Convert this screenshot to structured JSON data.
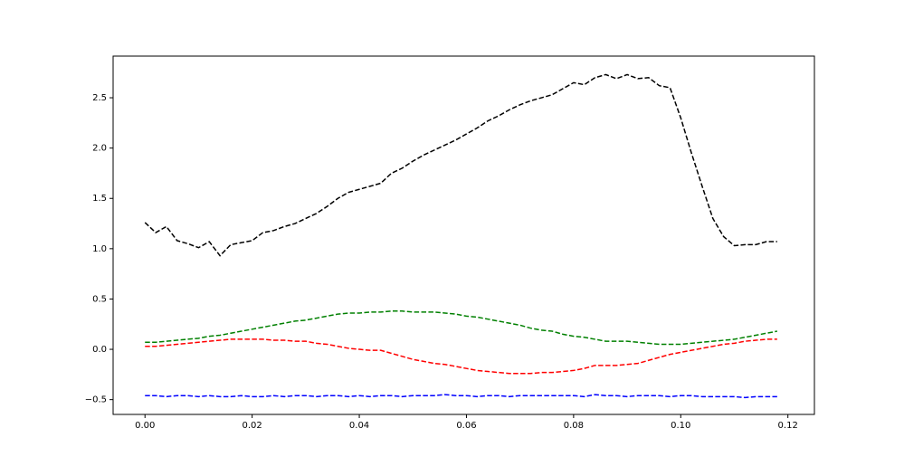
{
  "chart_data": {
    "type": "line",
    "x": [
      0,
      0.002,
      0.004,
      0.006,
      0.008,
      0.01,
      0.012,
      0.014,
      0.016,
      0.018,
      0.02,
      0.022,
      0.024,
      0.026,
      0.028,
      0.03,
      0.032,
      0.034,
      0.036,
      0.038,
      0.04,
      0.042,
      0.044,
      0.046,
      0.048,
      0.05,
      0.052,
      0.054,
      0.056,
      0.058,
      0.06,
      0.062,
      0.064,
      0.066,
      0.068,
      0.07,
      0.072,
      0.074,
      0.076,
      0.078,
      0.08,
      0.082,
      0.084,
      0.086,
      0.088,
      0.09,
      0.092,
      0.094,
      0.096,
      0.098,
      0.1,
      0.102,
      0.104,
      0.106,
      0.108,
      0.11,
      0.112,
      0.114,
      0.116,
      0.118
    ],
    "series": [
      {
        "color": "#000000",
        "values": [
          1.26,
          1.16,
          1.22,
          1.08,
          1.05,
          1.01,
          1.07,
          0.93,
          1.04,
          1.06,
          1.08,
          1.16,
          1.18,
          1.22,
          1.25,
          1.3,
          1.35,
          1.42,
          1.5,
          1.56,
          1.59,
          1.62,
          1.65,
          1.75,
          1.8,
          1.87,
          1.93,
          1.98,
          2.03,
          2.08,
          2.14,
          2.2,
          2.27,
          2.32,
          2.38,
          2.43,
          2.47,
          2.5,
          2.53,
          2.59,
          2.65,
          2.63,
          2.7,
          2.73,
          2.69,
          2.73,
          2.69,
          2.7,
          2.62,
          2.6,
          2.3,
          1.95,
          1.62,
          1.3,
          1.12,
          1.03,
          1.04,
          1.04,
          1.07,
          1.07
        ]
      },
      {
        "color": "#008000",
        "values": [
          0.07,
          0.07,
          0.08,
          0.09,
          0.1,
          0.11,
          0.13,
          0.14,
          0.16,
          0.18,
          0.2,
          0.22,
          0.24,
          0.26,
          0.28,
          0.29,
          0.31,
          0.33,
          0.35,
          0.36,
          0.36,
          0.37,
          0.37,
          0.38,
          0.38,
          0.37,
          0.37,
          0.37,
          0.36,
          0.35,
          0.33,
          0.32,
          0.3,
          0.28,
          0.26,
          0.24,
          0.21,
          0.19,
          0.18,
          0.15,
          0.13,
          0.12,
          0.1,
          0.08,
          0.08,
          0.08,
          0.07,
          0.06,
          0.05,
          0.05,
          0.05,
          0.06,
          0.07,
          0.08,
          0.09,
          0.1,
          0.12,
          0.14,
          0.16,
          0.18
        ]
      },
      {
        "color": "#ff0000",
        "values": [
          0.03,
          0.03,
          0.04,
          0.05,
          0.06,
          0.07,
          0.08,
          0.09,
          0.1,
          0.1,
          0.1,
          0.1,
          0.09,
          0.09,
          0.08,
          0.08,
          0.06,
          0.05,
          0.03,
          0.01,
          0.0,
          -0.01,
          -0.01,
          -0.04,
          -0.07,
          -0.1,
          -0.12,
          -0.14,
          -0.15,
          -0.17,
          -0.19,
          -0.21,
          -0.22,
          -0.23,
          -0.24,
          -0.24,
          -0.24,
          -0.23,
          -0.23,
          -0.22,
          -0.21,
          -0.19,
          -0.16,
          -0.16,
          -0.16,
          -0.15,
          -0.14,
          -0.11,
          -0.08,
          -0.05,
          -0.03,
          -0.01,
          0.01,
          0.03,
          0.05,
          0.06,
          0.08,
          0.09,
          0.1,
          0.1
        ]
      },
      {
        "color": "#0000ff",
        "values": [
          -0.46,
          -0.46,
          -0.47,
          -0.46,
          -0.46,
          -0.47,
          -0.46,
          -0.47,
          -0.47,
          -0.46,
          -0.47,
          -0.47,
          -0.46,
          -0.47,
          -0.46,
          -0.46,
          -0.47,
          -0.46,
          -0.46,
          -0.47,
          -0.46,
          -0.47,
          -0.46,
          -0.46,
          -0.47,
          -0.46,
          -0.46,
          -0.46,
          -0.45,
          -0.46,
          -0.46,
          -0.47,
          -0.46,
          -0.46,
          -0.47,
          -0.46,
          -0.46,
          -0.46,
          -0.46,
          -0.46,
          -0.46,
          -0.47,
          -0.45,
          -0.46,
          -0.46,
          -0.47,
          -0.46,
          -0.46,
          -0.46,
          -0.47,
          -0.46,
          -0.46,
          -0.47,
          -0.47,
          -0.47,
          -0.47,
          -0.48,
          -0.47,
          -0.47,
          -0.47
        ]
      }
    ],
    "xlim": [
      -0.00595,
      0.12495
    ],
    "xticks": [
      {
        "value": 0,
        "label": "0.00"
      },
      {
        "value": 0.02,
        "label": "0.02"
      },
      {
        "value": 0.04,
        "label": "0.04"
      },
      {
        "value": 0.06,
        "label": "0.06"
      },
      {
        "value": 0.08,
        "label": "0.08"
      },
      {
        "value": 0.1,
        "label": "0.10"
      },
      {
        "value": 0.12,
        "label": "0.12"
      }
    ],
    "ylim": [
      -0.647,
      2.914
    ],
    "yticks": [
      {
        "value": -0.5,
        "label": "−0.5"
      },
      {
        "value": 0,
        "label": "0.0"
      },
      0.5,
      {
        "value": 1,
        "label": "1.0"
      },
      1.5,
      {
        "value": 2,
        "label": "2.0"
      },
      2.5
    ],
    "linestyle": "dashed"
  }
}
